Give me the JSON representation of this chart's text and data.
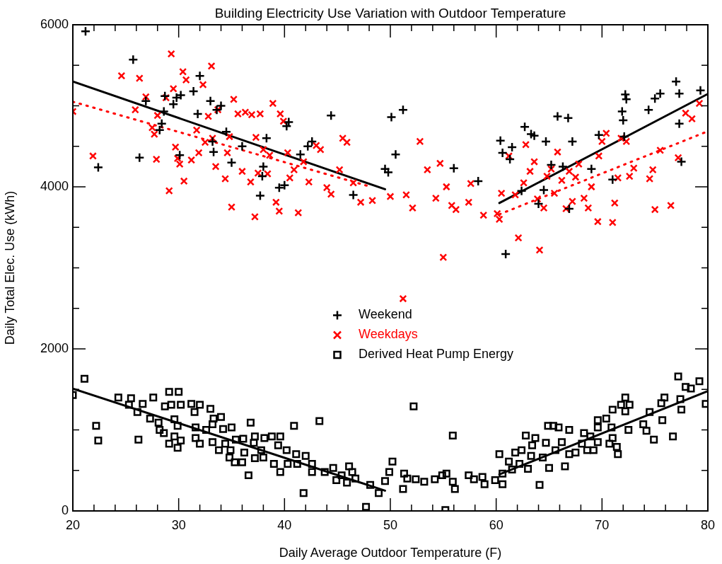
{
  "chart_data": {
    "type": "scatter",
    "title": "Building Electricity Use Variation with Outdoor Temperature",
    "xlabel": "Daily Average Outdoor Temperature (F)",
    "ylabel": "Daily Total Elec. Use (kWh)",
    "xlim": [
      20,
      80
    ],
    "ylim": [
      0,
      6000
    ],
    "xticks": [
      20,
      {
        "value": 22,
        "label": null
      },
      {
        "value": 24,
        "label": null
      },
      {
        "value": 26,
        "label": null
      },
      {
        "value": 28,
        "label": null
      },
      30,
      {
        "value": 32,
        "label": null
      },
      {
        "value": 34,
        "label": null
      },
      {
        "value": 36,
        "label": null
      },
      {
        "value": 38,
        "label": null
      },
      40,
      {
        "value": 42,
        "label": null
      },
      {
        "value": 44,
        "label": null
      },
      {
        "value": 46,
        "label": null
      },
      {
        "value": 48,
        "label": null
      },
      50,
      {
        "value": 52,
        "label": null
      },
      {
        "value": 54,
        "label": null
      },
      {
        "value": 56,
        "label": null
      },
      {
        "value": 58,
        "label": null
      },
      60,
      {
        "value": 62,
        "label": null
      },
      {
        "value": 64,
        "label": null
      },
      {
        "value": 66,
        "label": null
      },
      {
        "value": 68,
        "label": null
      },
      70,
      {
        "value": 72,
        "label": null
      },
      {
        "value": 74,
        "label": null
      },
      {
        "value": 76,
        "label": null
      },
      {
        "value": 78,
        "label": null
      },
      80
    ],
    "yticks": [
      0,
      {
        "value": 500,
        "label": null
      },
      {
        "value": 1000,
        "label": null
      },
      {
        "value": 1500,
        "label": null
      },
      2000,
      {
        "value": 2500,
        "label": null
      },
      {
        "value": 3000,
        "label": null
      },
      {
        "value": 3500,
        "label": null
      },
      4000,
      {
        "value": 4500,
        "label": null
      },
      {
        "value": 5000,
        "label": null
      },
      {
        "value": 5500,
        "label": null
      },
      6000
    ],
    "grid": false,
    "legend": "center",
    "series": [
      {
        "name": "Weekend",
        "color": "#000000",
        "marker": "cross",
        "x": [
          21.2,
          22.4,
          25.7,
          26.3,
          26.9,
          28.2,
          28.4,
          28.6,
          28.7,
          29.5,
          29.8,
          30.1,
          30.2,
          31.4,
          31.8,
          32.0,
          33.0,
          33.2,
          33.3,
          33.6,
          34.0,
          34.5,
          35.0,
          36.0,
          37.7,
          37.9,
          38.0,
          38.3,
          39.5,
          40.0,
          40.2,
          40.4,
          41.5,
          42.2,
          42.6,
          44.4,
          46.5,
          49.5,
          49.8,
          50.1,
          50.5,
          51.2,
          56.0,
          58.3,
          60.4,
          60.6,
          60.9,
          61.3,
          61.5,
          62.4,
          62.7,
          63.3,
          63.6,
          64.0,
          64.5,
          64.7,
          65.2,
          65.8,
          66.3,
          66.8,
          66.9,
          67.2,
          69.0,
          69.7,
          71.0,
          71.9,
          72.0,
          72.1,
          72.2,
          72.3,
          74.4,
          75.0,
          75.5,
          77.0,
          77.3,
          77.3,
          77.5,
          79.3
        ],
        "values": [
          5920,
          4240,
          5570,
          4360,
          5060,
          4700,
          4780,
          4930,
          5120,
          5020,
          5100,
          4390,
          5130,
          5180,
          4900,
          5370,
          5060,
          4560,
          4430,
          4950,
          5000,
          4680,
          4300,
          4500,
          3890,
          4130,
          4250,
          4600,
          3990,
          4020,
          4750,
          4800,
          4400,
          4500,
          4560,
          4880,
          3900,
          4220,
          4180,
          4860,
          4400,
          4950,
          4230,
          4070,
          4570,
          4420,
          3170,
          4340,
          4490,
          3950,
          4740,
          4650,
          4630,
          3790,
          3960,
          4560,
          4270,
          4870,
          4250,
          4850,
          3730,
          4560,
          4220,
          4640,
          4090,
          4930,
          4820,
          4620,
          5140,
          5080,
          4950,
          5090,
          5150,
          5300,
          5150,
          4780,
          4310,
          5190
        ]
      },
      {
        "name": "Weekdays",
        "color": "#ff0000",
        "marker": "x",
        "x": [
          20.0,
          21.9,
          24.6,
          25.9,
          26.3,
          26.9,
          27.5,
          27.7,
          27.9,
          28.0,
          28.8,
          29.1,
          29.3,
          29.5,
          29.7,
          29.9,
          30.1,
          30.4,
          30.5,
          30.7,
          31.2,
          31.7,
          31.9,
          32.3,
          32.5,
          32.8,
          33.1,
          33.2,
          33.5,
          33.7,
          34.4,
          34.6,
          34.8,
          35.0,
          35.2,
          35.6,
          36.0,
          36.3,
          36.8,
          36.9,
          37.2,
          37.3,
          37.5,
          37.7,
          38.0,
          38.4,
          38.6,
          38.9,
          39.2,
          39.5,
          39.6,
          39.9,
          40.3,
          40.5,
          40.9,
          41.3,
          41.8,
          42.3,
          43.0,
          43.4,
          44.0,
          44.4,
          45.2,
          45.5,
          45.9,
          46.5,
          47.2,
          48.3,
          50.0,
          51.2,
          51.5,
          52.1,
          52.8,
          53.5,
          54.3,
          54.7,
          55.0,
          55.3,
          55.8,
          56.2,
          57.4,
          57.6,
          58.8,
          60.1,
          60.3,
          60.5,
          61.2,
          61.8,
          62.1,
          62.6,
          62.8,
          63.2,
          63.6,
          63.9,
          64.1,
          64.5,
          64.8,
          65.2,
          65.5,
          65.8,
          66.2,
          66.6,
          66.9,
          67.2,
          67.5,
          67.8,
          68.3,
          68.7,
          69.0,
          69.6,
          69.7,
          70.0,
          70.4,
          71.0,
          71.2,
          71.5,
          71.8,
          72.3,
          72.6,
          73.0,
          74.5,
          74.8,
          75.0,
          75.5,
          76.5,
          77.2,
          77.9,
          78.5,
          79.2
        ],
        "values": [
          4930,
          4380,
          5370,
          4950,
          5340,
          5110,
          4730,
          4650,
          4340,
          4880,
          5100,
          3950,
          5640,
          5210,
          4490,
          4350,
          4280,
          5420,
          4070,
          5320,
          4330,
          4700,
          4420,
          5260,
          4550,
          4870,
          5490,
          4600,
          4250,
          4950,
          4100,
          4420,
          4620,
          3750,
          5080,
          4900,
          4190,
          4920,
          4060,
          4890,
          3630,
          4610,
          4170,
          4900,
          4460,
          4160,
          4390,
          5030,
          3810,
          3700,
          4900,
          4810,
          4420,
          4110,
          4210,
          3680,
          4310,
          4060,
          4510,
          4460,
          3990,
          3910,
          4210,
          4600,
          4550,
          4050,
          3810,
          3830,
          3880,
          2620,
          3900,
          3740,
          4560,
          4210,
          3860,
          4290,
          3130,
          4000,
          3770,
          3720,
          3810,
          4040,
          3650,
          3670,
          3600,
          3920,
          4380,
          3900,
          3370,
          4050,
          4520,
          4190,
          4310,
          3850,
          3220,
          3740,
          4130,
          4220,
          3920,
          4430,
          4080,
          3730,
          4190,
          3820,
          4120,
          4280,
          3860,
          3740,
          4000,
          3570,
          4380,
          4560,
          4660,
          3560,
          3800,
          4110,
          4600,
          4560,
          4130,
          4230,
          4100,
          4210,
          3720,
          4450,
          3770,
          4360,
          4910,
          4840,
          5030
        ]
      },
      {
        "name": "Derived Heat Pump Energy",
        "color": "#000000",
        "marker": "square",
        "x": [
          20.0,
          21.1,
          22.2,
          22.4,
          24.3,
          25.5,
          25.3,
          26.2,
          26.6,
          26.1,
          27.6,
          27.3,
          28.1,
          28.2,
          28.6,
          28.7,
          29.1,
          30.0,
          29.3,
          30.2,
          29.6,
          29.9,
          29.6,
          29.1,
          29.9,
          30.2,
          31.2,
          32.0,
          31.5,
          31.6,
          31.6,
          32.0,
          33.0,
          33.3,
          34.0,
          33.2,
          32.6,
          33.2,
          34.2,
          35.0,
          34.4,
          33.8,
          34.9,
          34.8,
          35.4,
          36.1,
          36.2,
          35.3,
          36.0,
          36.8,
          36.6,
          37.2,
          37.1,
          37.2,
          37.8,
          38.0,
          38.1,
          38.8,
          39.0,
          39.4,
          39.6,
          39.6,
          40.2,
          40.3,
          40.9,
          41.1,
          41.2,
          41.8,
          42.0,
          42.6,
          42.6,
          43.3,
          43.8,
          44.6,
          44.9,
          45.4,
          46.1,
          45.9,
          46.4,
          46.7,
          47.7,
          48.1,
          48.9,
          49.5,
          49.9,
          50.2,
          51.2,
          51.3,
          51.6,
          52.2,
          52.4,
          53.2,
          54.2,
          54.9,
          55.3,
          55.2,
          55.9,
          55.9,
          56.1,
          57.4,
          57.9,
          58.7,
          58.9,
          59.9,
          60.3,
          60.6,
          60.6,
          61.2,
          61.5,
          61.8,
          62.4,
          62.2,
          62.8,
          63.0,
          63.3,
          63.7,
          63.4,
          64.1,
          64.4,
          64.7,
          65.0,
          64.9,
          65.4,
          65.9,
          65.6,
          66.2,
          66.5,
          66.9,
          66.9,
          67.5,
          68.1,
          68.3,
          68.6,
          68.9,
          69.2,
          69.6,
          69.6,
          69.6,
          70.4,
          70.7,
          70.9,
          71.0,
          71.0,
          71.4,
          71.5,
          71.8,
          72.2,
          72.2,
          72.5,
          72.6,
          73.9,
          74.2,
          74.5,
          74.9,
          75.6,
          75.7,
          75.9,
          76.7,
          77.2,
          77.4,
          77.5,
          77.9,
          78.4,
          79.2,
          79.8
        ],
        "values": [
          1430,
          1630,
          1050,
          870,
          1400,
          1390,
          1310,
          880,
          1320,
          1220,
          1400,
          1140,
          1090,
          1000,
          960,
          1290,
          1470,
          1470,
          1310,
          1310,
          1130,
          1050,
          920,
          830,
          780,
          870,
          1320,
          1310,
          1220,
          1030,
          900,
          830,
          1260,
          1140,
          1160,
          1070,
          1000,
          850,
          1010,
          1030,
          830,
          750,
          750,
          660,
          880,
          890,
          720,
          600,
          600,
          1090,
          440,
          920,
          840,
          650,
          750,
          660,
          900,
          920,
          580,
          810,
          920,
          480,
          750,
          580,
          1050,
          700,
          580,
          220,
          680,
          580,
          480,
          1110,
          480,
          530,
          380,
          440,
          550,
          350,
          480,
          400,
          50,
          320,
          220,
          370,
          480,
          610,
          270,
          460,
          400,
          1290,
          390,
          360,
          390,
          440,
          460,
          10,
          930,
          360,
          270,
          440,
          390,
          420,
          330,
          380,
          700,
          330,
          460,
          610,
          510,
          720,
          750,
          580,
          930,
          520,
          680,
          900,
          810,
          320,
          660,
          840,
          530,
          1050,
          1050,
          1030,
          750,
          850,
          550,
          1000,
          700,
          720,
          830,
          960,
          750,
          920,
          750,
          850,
          1120,
          1030,
          1140,
          830,
          1030,
          1250,
          900,
          790,
          700,
          1310,
          1400,
          1230,
          1000,
          1310,
          1070,
          990,
          1220,
          880,
          1330,
          1120,
          1400,
          920,
          1660,
          1380,
          1250,
          1530,
          1510,
          1600,
          1320
        ]
      },
      {
        "type": "line",
        "color": "#000000",
        "line_style": "solid",
        "marker": "none",
        "x": [
          20,
          49.5
        ],
        "values": [
          5300,
          3970
        ]
      },
      {
        "type": "line",
        "color": "#000000",
        "line_style": "solid",
        "marker": "none",
        "x": [
          60.3,
          79.9
        ],
        "values": [
          3800,
          5140
        ]
      },
      {
        "type": "line",
        "color": "#ff0000",
        "line_style": "dotted",
        "marker": "none",
        "x": [
          20,
          47.9
        ],
        "values": [
          5050,
          4010
        ]
      },
      {
        "type": "line",
        "color": "#ff0000",
        "line_style": "dotted",
        "marker": "none",
        "x": [
          60.3,
          79.7
        ],
        "values": [
          3660,
          4670
        ]
      },
      {
        "type": "line",
        "color": "#000000",
        "line_style": "solid",
        "marker": "none",
        "x": [
          20,
          49.5
        ],
        "values": [
          1510,
          250
        ]
      },
      {
        "type": "line",
        "color": "#000000",
        "line_style": "solid",
        "marker": "none",
        "x": [
          60.3,
          80
        ],
        "values": [
          450,
          1480
        ]
      }
    ]
  }
}
